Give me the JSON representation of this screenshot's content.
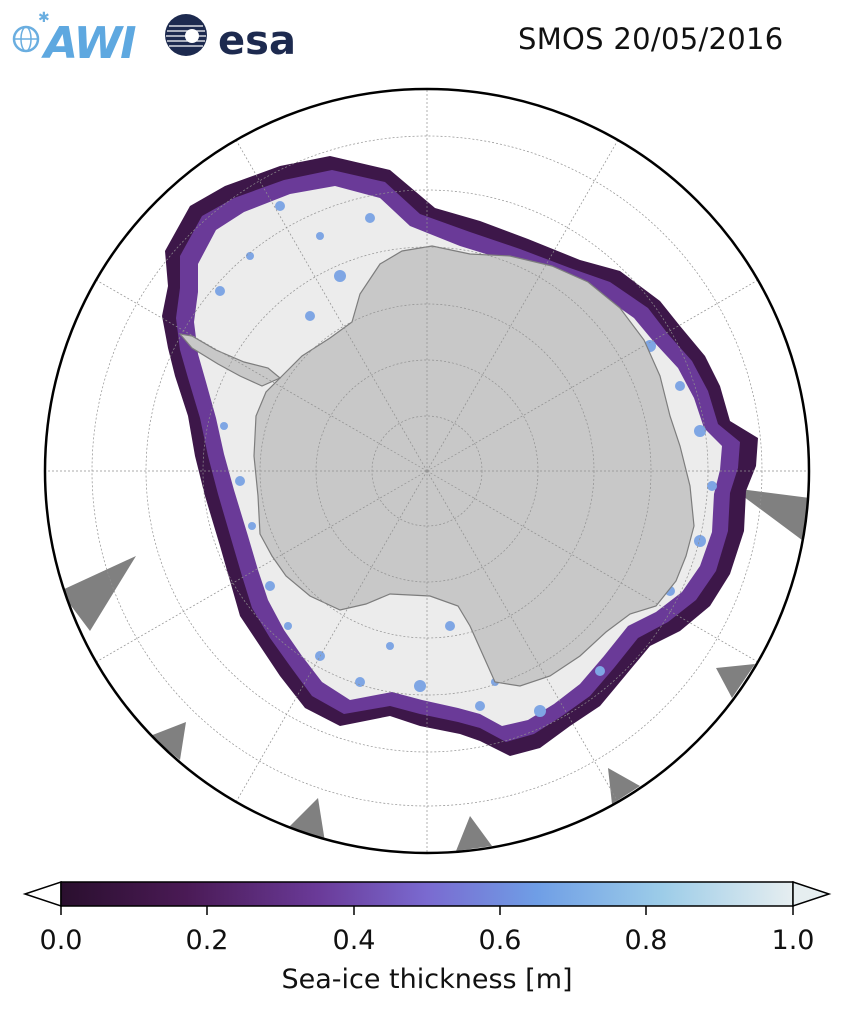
{
  "header": {
    "title": "SMOS 20/05/2016",
    "logo_awi_text": "AWI",
    "logo_esa_text": "esa"
  },
  "map": {
    "projection": "south-polar-stereographic",
    "colors": {
      "land": "#c8c8c8",
      "land_edge": "#7d7d7d",
      "thick_ice": "#ececec",
      "no_data": "#808080",
      "ocean": "#ffffff",
      "grid": "#909090",
      "border": "#000000"
    }
  },
  "colorbar": {
    "label": "Sea-ice thickness [m]",
    "ticks": [
      "0.0",
      "0.2",
      "0.4",
      "0.6",
      "0.8",
      "1.0"
    ],
    "range": [
      0.0,
      1.0
    ],
    "extend": "both",
    "stops": [
      "#2a0f2e",
      "#4a1a55",
      "#6a3a98",
      "#7a6ad0",
      "#6f9ee6",
      "#9ccce8",
      "#e6eef0"
    ]
  }
}
